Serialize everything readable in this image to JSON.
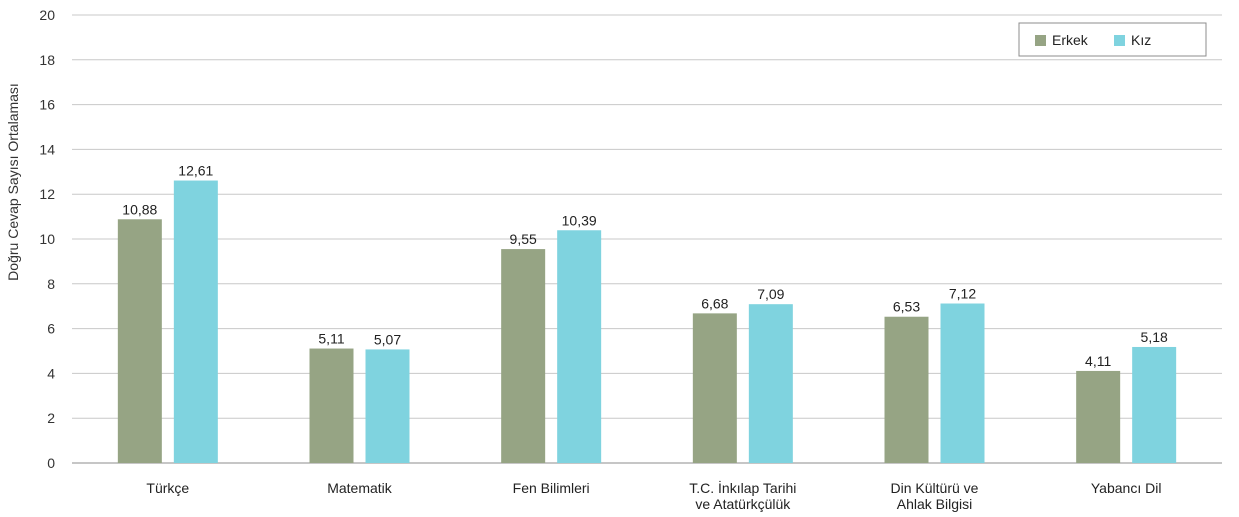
{
  "chart_data": {
    "type": "bar",
    "title": "",
    "xlabel": "",
    "ylabel": "Doğru Cevap Sayısı Ortalaması",
    "ylim": [
      0,
      20
    ],
    "yticks": [
      0,
      2,
      4,
      6,
      8,
      10,
      12,
      14,
      16,
      18,
      20
    ],
    "grid": true,
    "legend_position": "top-right",
    "categories": [
      [
        "Türkçe"
      ],
      [
        "Matematik"
      ],
      [
        "Fen Bilimleri"
      ],
      [
        "T.C. İnkılap Tarihi",
        "ve Atatürkçülük"
      ],
      [
        "Din Kültürü ve",
        "Ahlak Bilgisi"
      ],
      [
        "Yabancı Dil"
      ]
    ],
    "series": [
      {
        "name": "Erkek",
        "color": "#96a484",
        "values": [
          10.88,
          5.11,
          9.55,
          6.68,
          6.53,
          4.11
        ],
        "labels": [
          "10,88",
          "5,11",
          "9,55",
          "6,68",
          "6,53",
          "4,11"
        ]
      },
      {
        "name": "Kız",
        "color": "#7fd3df",
        "values": [
          12.61,
          5.07,
          10.39,
          7.09,
          7.12,
          5.18
        ],
        "labels": [
          "12,61",
          "5,07",
          "10,39",
          "7,09",
          "7,12",
          "5,18"
        ]
      }
    ]
  }
}
